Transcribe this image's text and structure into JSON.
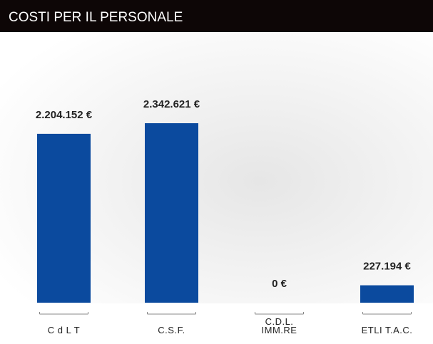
{
  "chart_data": {
    "type": "bar",
    "title": "COSTI PER IL PERSONALE",
    "categories": [
      "C d L T",
      "C.S.F.",
      "C.D.L.\nIMM.RE",
      "ETLI T.A.C."
    ],
    "values": [
      2204152,
      2342621,
      0,
      227194
    ],
    "value_labels": [
      "2.204.152 €",
      "2.342.621 €",
      "0 €",
      "227.194 €"
    ],
    "color": "#0b4a9e"
  }
}
